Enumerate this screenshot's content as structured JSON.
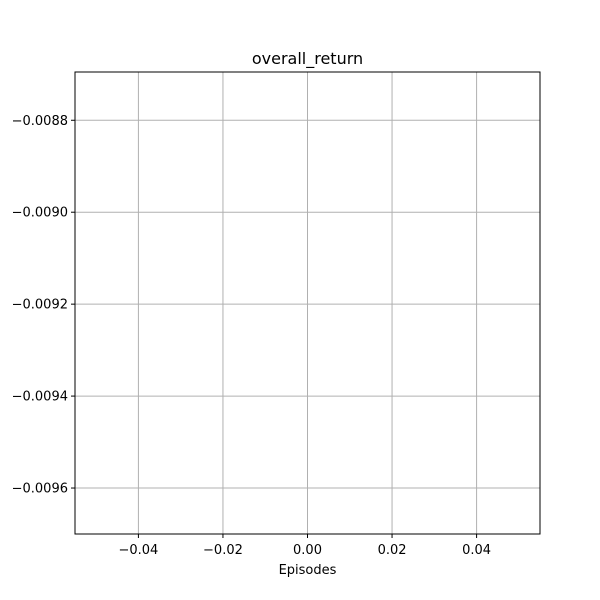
{
  "chart_data": {
    "type": "line",
    "title": "overall_return",
    "xlabel": "Episodes",
    "ylabel": "",
    "xlim": [
      -0.055,
      0.055
    ],
    "ylim": [
      -0.0097,
      -0.008695
    ],
    "x_ticks": [
      -0.04,
      -0.02,
      0.0,
      0.02,
      0.04
    ],
    "x_tick_labels": [
      "−0.04",
      "−0.02",
      "0.00",
      "0.02",
      "0.04"
    ],
    "y_ticks": [
      -0.0088,
      -0.009,
      -0.0092,
      -0.0094,
      -0.0096
    ],
    "y_tick_labels": [
      "−0.0088",
      "−0.0090",
      "−0.0092",
      "−0.0094",
      "−0.0096"
    ],
    "grid": true,
    "series": [
      {
        "values": []
      }
    ],
    "colors": {
      "grid": "#b0b0b0",
      "axes": "#000000",
      "background": "#ffffff"
    }
  }
}
